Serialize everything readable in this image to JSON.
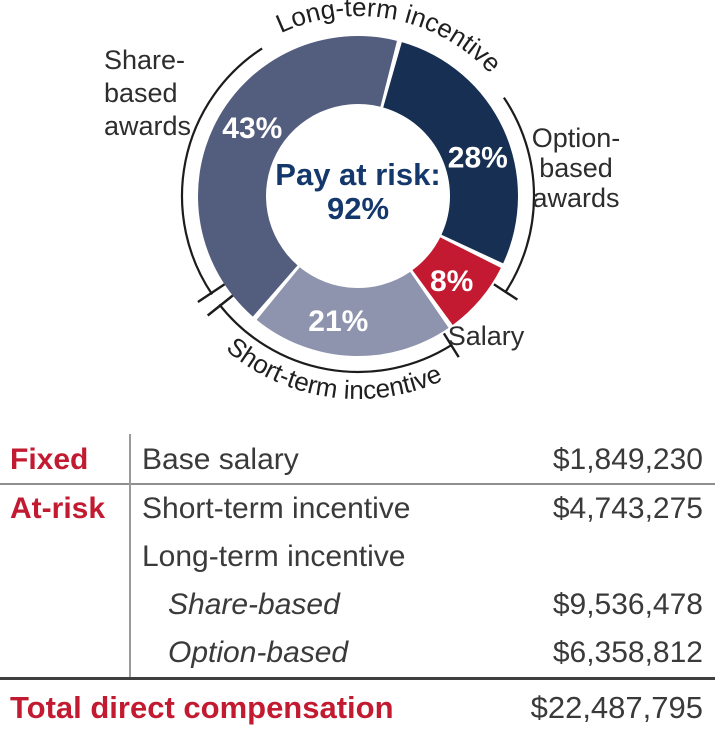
{
  "chart_data": [
    {
      "type": "pie",
      "subtype": "donut",
      "title": "",
      "unit": "%",
      "start_angle_deg": 15,
      "center_label_line1": "Pay at risk:",
      "center_label_line2": "92%",
      "slices": [
        {
          "label": "Option-based awards",
          "value": 28,
          "display": "28%",
          "color": "#162f52",
          "label_angle": 72
        },
        {
          "label": "Salary",
          "value": 8,
          "display": "8%",
          "color": "#c41a31",
          "label_angle": 132
        },
        {
          "label": "Short-term incentive",
          "value": 21,
          "display": "21%",
          "color": "#8e94ae",
          "label_angle": 189
        },
        {
          "label": "Share-based awards",
          "value": 43,
          "display": "43%",
          "color": "#535d7e",
          "label_angle": 303
        }
      ],
      "annotations": {
        "top_arc_label": "Long-term incentive",
        "bottom_arc_label": "Short-term incentive",
        "left_label_lines": [
          "Share-",
          "based",
          "awards"
        ],
        "right_label_lines": [
          "Option-",
          "based",
          "awards"
        ],
        "salary_label": "Salary"
      },
      "legend_position": "outside-callouts"
    },
    {
      "type": "table",
      "rows": [
        {
          "category": "Fixed",
          "item": "Base salary",
          "value": "$1,849,230"
        },
        {
          "category": "At-risk",
          "item": "Short-term incentive",
          "value": "$4,743,275"
        },
        {
          "category": "",
          "item": "Long-term incentive",
          "value": ""
        },
        {
          "category": "",
          "item": "Share-based",
          "value": "$9,536,478"
        },
        {
          "category": "",
          "item": "Option-based",
          "value": "$6,358,812"
        }
      ],
      "total": {
        "label": "Total direct compensation",
        "value": "$22,487,795"
      }
    }
  ],
  "colors": {
    "accent_red": "#c21b31",
    "navy_text": "#14386b",
    "slice_navy": "#162f52",
    "slice_slate": "#535d7e",
    "slice_light": "#8e94ae",
    "slice_red": "#c41a31",
    "body_text": "#3a3a3a",
    "rule_gray": "#8f8f8f",
    "rule_dark": "#3f3f3f"
  }
}
